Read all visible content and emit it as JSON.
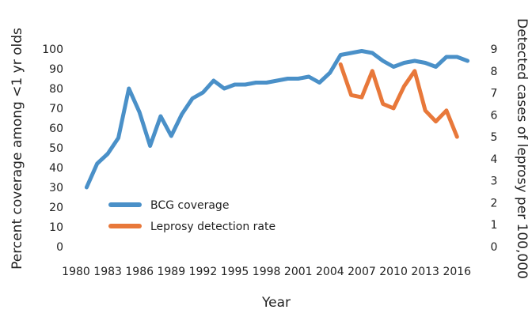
{
  "chart_data": {
    "type": "line",
    "title": "",
    "xlabel": "Year",
    "ylabel_left": "Percent coverage among <1 yr olds",
    "ylabel_right": "Detected cases of leprosy per 100,000",
    "x_tick_labels": [
      "1980",
      "1983",
      "1986",
      "1989",
      "1992",
      "1995",
      "1998",
      "2001",
      "2004",
      "2007",
      "2010",
      "2013",
      "2016"
    ],
    "xlim": [
      1980,
      2018
    ],
    "y_left_ticks": [
      "0",
      "10",
      "20",
      "30",
      "40",
      "50",
      "60",
      "70",
      "80",
      "90",
      "100"
    ],
    "y_left_lim": [
      0,
      100
    ],
    "y_right_ticks": [
      "0",
      "1",
      "2",
      "3",
      "4",
      "5",
      "6",
      "7",
      "8",
      "9"
    ],
    "y_right_lim": [
      0,
      9
    ],
    "legend_position": "lower-left",
    "series": [
      {
        "name": "BCG coverage",
        "axis": "left",
        "color": "#4a90c8",
        "x": [
          1981,
          1982,
          1983,
          1984,
          1985,
          1986,
          1987,
          1988,
          1989,
          1990,
          1991,
          1992,
          1993,
          1994,
          1995,
          1996,
          1997,
          1998,
          1999,
          2000,
          2001,
          2002,
          2003,
          2004,
          2005,
          2006,
          2007,
          2008,
          2009,
          2010,
          2011,
          2012,
          2013,
          2014,
          2015,
          2016,
          2017
        ],
        "values": [
          30,
          42,
          47,
          55,
          80,
          68,
          51,
          66,
          56,
          67,
          75,
          78,
          84,
          80,
          82,
          82,
          83,
          83,
          84,
          85,
          85,
          86,
          83,
          88,
          97,
          98,
          99,
          98,
          94,
          91,
          93,
          94,
          93,
          91,
          96,
          96,
          94
        ]
      },
      {
        "name": "Leprosy detection rate",
        "axis": "right",
        "color": "#e8783a",
        "x": [
          2005,
          2006,
          2007,
          2008,
          2009,
          2010,
          2011,
          2012,
          2013,
          2014,
          2015,
          2016
        ],
        "values": [
          8.3,
          6.9,
          6.8,
          8.0,
          6.5,
          6.3,
          7.3,
          8.0,
          6.2,
          5.7,
          6.2,
          5.0
        ]
      }
    ]
  }
}
